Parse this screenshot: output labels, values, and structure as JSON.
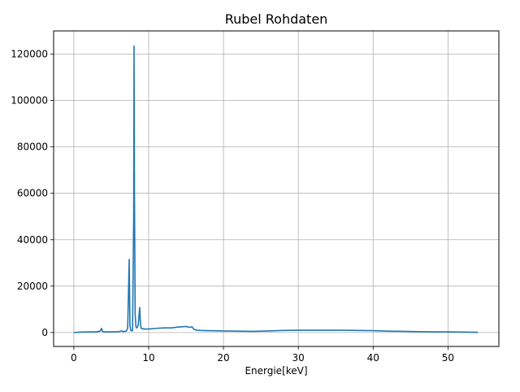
{
  "chart_data": {
    "type": "line",
    "title": "Rubel Rohdaten",
    "xlabel": "Energie[keV]",
    "ylabel": "",
    "xlim": [
      -2.7,
      56.8
    ],
    "ylim": [
      -6000,
      130000
    ],
    "x_ticks": [
      0,
      10,
      20,
      30,
      40,
      50
    ],
    "y_ticks": [
      0,
      20000,
      40000,
      60000,
      80000,
      100000,
      120000
    ],
    "x_tick_labels": [
      "0",
      "10",
      "20",
      "30",
      "40",
      "50"
    ],
    "y_tick_labels": [
      "0",
      "20000",
      "40000",
      "60000",
      "80000",
      "100000",
      "120000"
    ],
    "grid": true,
    "series": [
      {
        "color": "#1f77b4",
        "x": [
          0.0,
          1.0,
          2.0,
          3.0,
          3.5,
          3.7,
          3.8,
          4.0,
          5.0,
          6.0,
          6.4,
          6.6,
          6.8,
          7.0,
          7.2,
          7.4,
          7.5,
          7.6,
          7.7,
          7.85,
          8.0,
          8.05,
          8.1,
          8.2,
          8.3,
          8.4,
          8.6,
          8.8,
          8.9,
          9.0,
          9.2,
          9.5,
          10.0,
          11.0,
          12.0,
          13.0,
          14.0,
          15.0,
          15.5,
          15.8,
          16.0,
          16.2,
          16.5,
          17.0,
          18.0,
          20.0,
          22.0,
          24.0,
          26.0,
          28.0,
          30.0,
          32.0,
          34.0,
          36.0,
          38.0,
          40.0,
          42.0,
          44.0,
          46.0,
          48.0,
          50.0,
          52.0,
          54.0
        ],
        "y": [
          0,
          200,
          300,
          300,
          600,
          1800,
          600,
          300,
          300,
          400,
          700,
          400,
          500,
          600,
          2000,
          31500,
          3000,
          1000,
          700,
          900,
          50000,
          123500,
          60000,
          8000,
          2500,
          2000,
          3000,
          10800,
          4000,
          1800,
          1600,
          1500,
          1500,
          1800,
          2000,
          2000,
          2400,
          2600,
          2200,
          2500,
          1500,
          1200,
          1000,
          900,
          800,
          700,
          600,
          500,
          700,
          900,
          1000,
          1000,
          1000,
          1000,
          900,
          800,
          600,
          500,
          400,
          300,
          300,
          200,
          100
        ]
      }
    ]
  }
}
